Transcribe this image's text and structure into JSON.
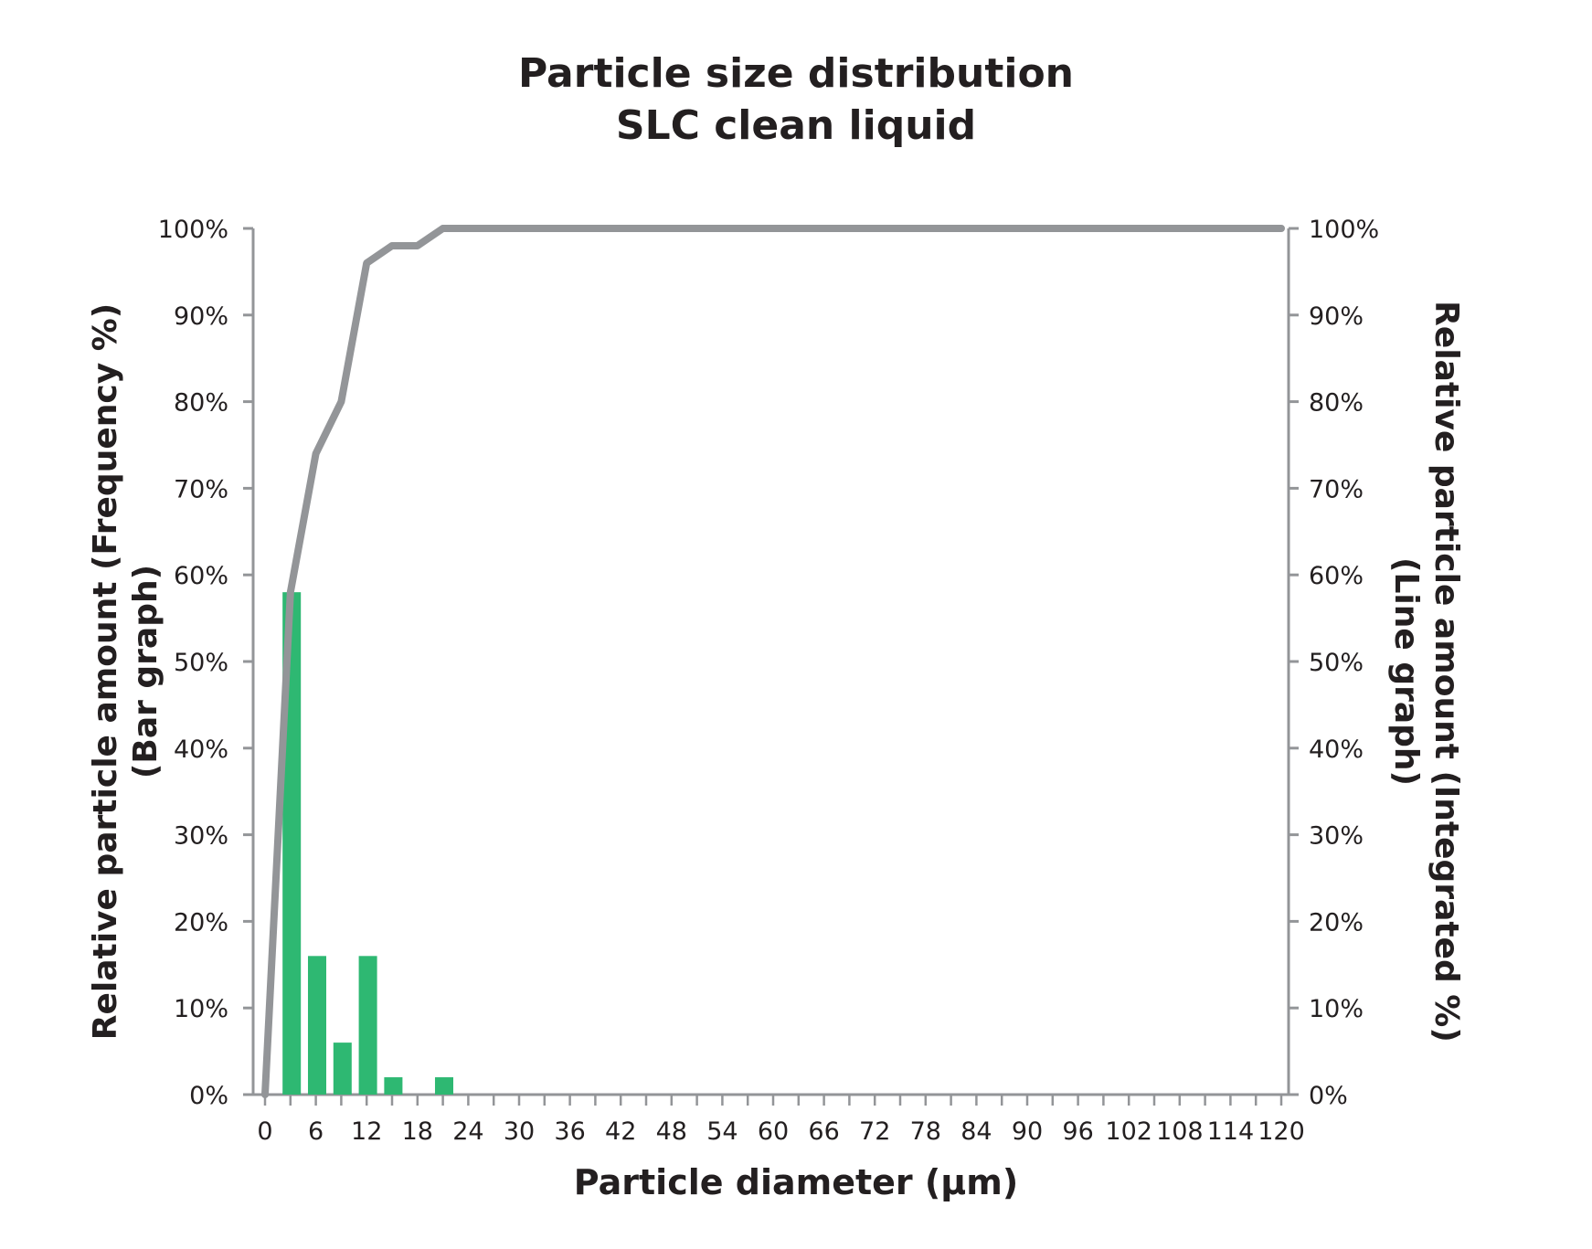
{
  "title_lines": [
    "Particle size distribution",
    "SLC clean liquid"
  ],
  "chart_data": {
    "type": "bar",
    "title": "Particle size distribution SLC clean liquid",
    "xlabel": "Particle diameter (µm)",
    "ylabel": "Relative particle amount (Frequency %) (Bar graph)",
    "y2label": "Relative particle amount (Integrated %) (Line graph)",
    "ylabel_lines": [
      "Relative particle amount (Frequency %)",
      "(Bar graph)"
    ],
    "y2label_lines": [
      "Relative particle amount (Integrated %)",
      "(Line graph)"
    ],
    "xlim": [
      0,
      120
    ],
    "ylim": [
      0,
      100
    ],
    "y2lim": [
      0,
      100
    ],
    "x_ticks": [
      0,
      6,
      12,
      18,
      24,
      30,
      36,
      42,
      48,
      54,
      60,
      66,
      72,
      78,
      84,
      90,
      96,
      102,
      108,
      114,
      120
    ],
    "y_ticks": [
      "0%",
      "10%",
      "20%",
      "30%",
      "40%",
      "50%",
      "60%",
      "70%",
      "80%",
      "90%",
      "100%"
    ],
    "y_tick_values": [
      0,
      10,
      20,
      30,
      40,
      50,
      60,
      70,
      80,
      90,
      100
    ],
    "grid": false,
    "bar_color": "#2eb872",
    "line_color": "#939598",
    "series": [
      {
        "type": "bar",
        "axis": "left",
        "x": [
          3,
          6,
          9,
          12,
          15,
          18,
          21
        ],
        "values": [
          58,
          16,
          6,
          16,
          2,
          0,
          2
        ]
      },
      {
        "type": "line",
        "axis": "right",
        "x": [
          0,
          3,
          6,
          9,
          12,
          15,
          18,
          21,
          24,
          120
        ],
        "values": [
          0,
          58,
          74,
          80,
          96,
          98,
          98,
          100,
          100,
          100
        ]
      }
    ]
  }
}
